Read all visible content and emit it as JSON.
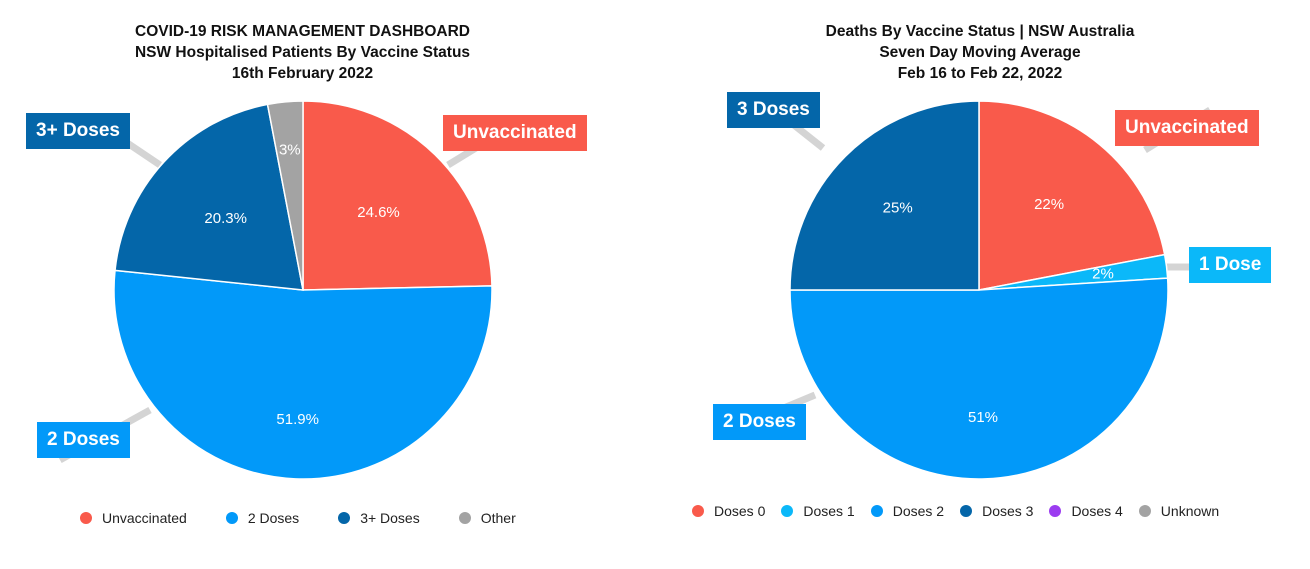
{
  "chart_data": [
    {
      "type": "pie",
      "title_lines": [
        "COVID-19 RISK MANAGEMENT DASHBOARD",
        "NSW Hospitalised Patients By Vaccine Status",
        "16th February 2022"
      ],
      "slices": [
        {
          "name": "Unvaccinated",
          "value": 24.6,
          "label": "24.6%",
          "color": "#f95a4b"
        },
        {
          "name": "2 Doses",
          "value": 51.9,
          "label": "51.9%",
          "color": "#0299f9"
        },
        {
          "name": "3+ Doses",
          "value": 20.3,
          "label": "20.3%",
          "color": "#0466a9"
        },
        {
          "name": "Other",
          "value": 3,
          "label": "3%",
          "color": "#a3a3a3"
        }
      ],
      "callouts": [
        "Unvaccinated",
        "2 Doses",
        "3+ Doses"
      ],
      "legend": [
        "Unvaccinated",
        "2 Doses",
        "3+ Doses",
        "Other"
      ],
      "legend_placement": "bottom"
    },
    {
      "type": "pie",
      "title_lines": [
        "Deaths By Vaccine Status | NSW Australia",
        "Seven Day Moving Average",
        "Feb 16 to Feb 22, 2022"
      ],
      "slices": [
        {
          "name": "Doses 0",
          "value": 22,
          "label": "22%",
          "color": "#f95a4b"
        },
        {
          "name": "Doses 1",
          "value": 2,
          "label": "2%",
          "color": "#0bb8f9"
        },
        {
          "name": "Doses 2",
          "value": 51,
          "label": "51%",
          "color": "#0299f9"
        },
        {
          "name": "Doses 3",
          "value": 25,
          "label": "25%",
          "color": "#0466a9"
        },
        {
          "name": "Doses 4",
          "value": 0,
          "label": "",
          "color": "#9b3cf0"
        },
        {
          "name": "Unknown",
          "value": 0,
          "label": "",
          "color": "#a3a3a3"
        }
      ],
      "callouts": [
        "Unvaccinated",
        "1 Dose",
        "2 Doses",
        "3 Doses"
      ],
      "legend": [
        "Doses 0",
        "Doses 1",
        "Doses 2",
        "Doses 3",
        "Doses 4",
        "Unknown"
      ],
      "legend_placement": "bottom"
    }
  ]
}
